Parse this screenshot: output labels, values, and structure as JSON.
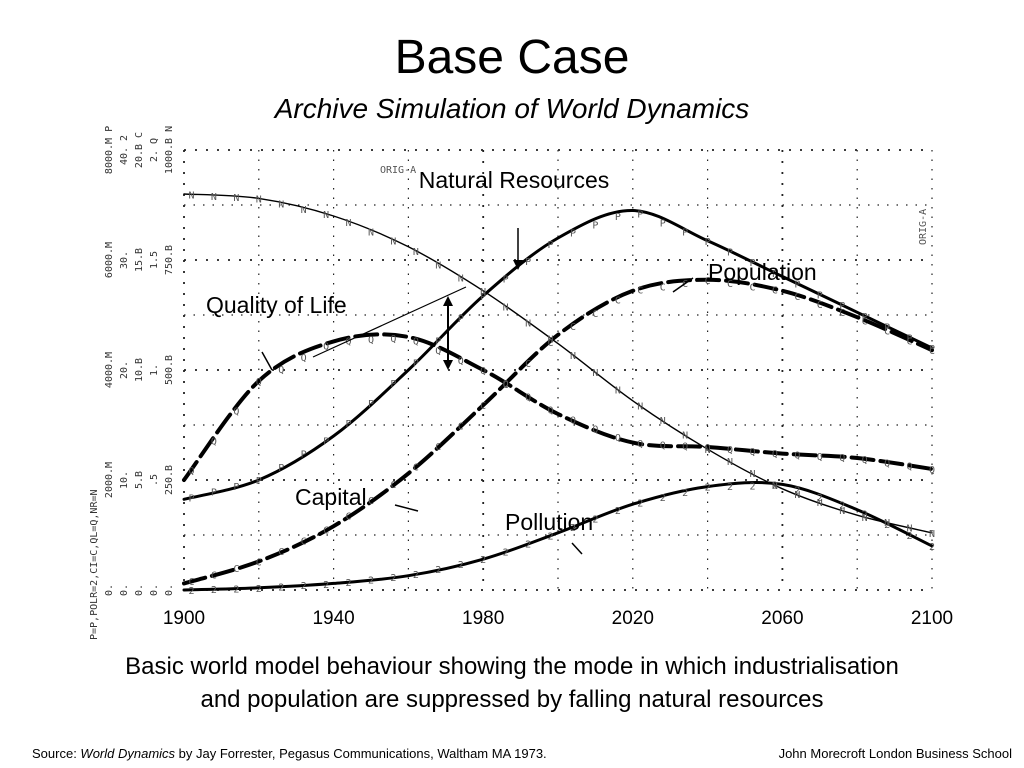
{
  "slide": {
    "title": "Base Case",
    "subtitle": "Archive Simulation of World Dynamics",
    "caption_line1": "Basic world model behaviour showing the mode in which industrialisation",
    "caption_line2": "and population are suppressed by falling natural resources",
    "source_prefix": "Source: ",
    "source_book": "World Dynamics",
    "source_suffix": " by Jay Forrester, Pegasus Communications, Waltham MA 1973.",
    "author": "John Morecroft   London Business School"
  },
  "chart_data": {
    "type": "line",
    "x": [
      1900,
      1920,
      1940,
      1960,
      1980,
      2000,
      2020,
      2040,
      2060,
      2080,
      2100
    ],
    "xlim": [
      1900,
      2100
    ],
    "x_ticks": [
      "1900",
      "1940",
      "1980",
      "2020",
      "2060",
      "2100"
    ],
    "scale_labels": {
      "p": [
        "0.",
        "2000.M",
        "4000.M",
        "6000.M",
        "8000.M P"
      ],
      "polr": [
        "0.",
        "10.",
        "20.",
        "30.",
        "40. 2"
      ],
      "ci": [
        "0.",
        "5.B",
        "10.B",
        "15.B",
        "20.B C"
      ],
      "ql": [
        "0.",
        ".5",
        "1.",
        "1.5",
        "2. Q"
      ],
      "nr": [
        "0.",
        "250.B",
        "500.B",
        "750.B",
        "1000.B N"
      ]
    },
    "legend_code": "P=P,POLR=2,CI=C,QL=Q,NR=N",
    "run_label": "ORIG-A",
    "series": [
      {
        "name": "Natural Resources",
        "symbol": "N",
        "style": "thin",
        "unit": "B",
        "ylim": [
          0,
          1000
        ],
        "values": [
          900,
          890,
          850,
          780,
          680,
          560,
          430,
          320,
          230,
          170,
          130
        ]
      },
      {
        "name": "Population",
        "symbol": "P",
        "style": "solid",
        "unit": "M",
        "ylim": [
          0,
          8000
        ],
        "values": [
          1650,
          2000,
          2800,
          4000,
          5350,
          6400,
          6900,
          6350,
          5700,
          5050,
          4400
        ]
      },
      {
        "name": "Quality of Life",
        "symbol": "Q",
        "style": "dashed",
        "unit": "",
        "ylim": [
          0,
          2
        ],
        "values": [
          0.5,
          0.95,
          1.13,
          1.15,
          1.0,
          0.8,
          0.67,
          0.65,
          0.62,
          0.6,
          0.55
        ]
      },
      {
        "name": "Capital",
        "symbol": "C",
        "style": "dashed",
        "unit": "B",
        "ylim": [
          0,
          20
        ],
        "values": [
          0.3,
          1.3,
          2.9,
          5.3,
          8.4,
          11.6,
          13.6,
          14.1,
          13.6,
          12.4,
          10.9
        ]
      },
      {
        "name": "Pollution",
        "symbol": "2",
        "style": "solid",
        "unit": "",
        "ylim": [
          0,
          40
        ],
        "values": [
          0,
          0.2,
          0.6,
          1.3,
          2.8,
          5.2,
          7.8,
          9.4,
          9.6,
          7.3,
          4.0
        ]
      }
    ]
  }
}
